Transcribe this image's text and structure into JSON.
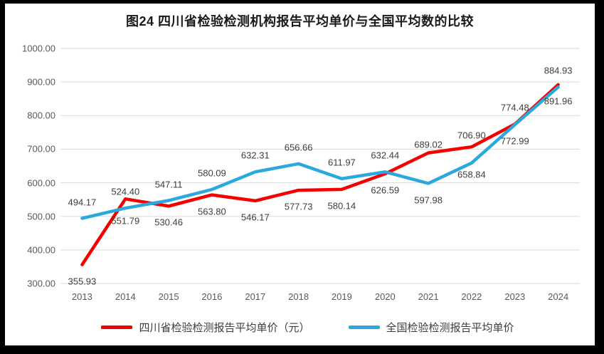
{
  "chart_data": {
    "type": "line",
    "title": "图24  四川省检验检测机构报告平均单价与全国平均数的比较",
    "categories": [
      "2013",
      "2014",
      "2015",
      "2016",
      "2017",
      "2018",
      "2019",
      "2020",
      "2021",
      "2022",
      "2023",
      "2024"
    ],
    "series": [
      {
        "name": "四川省检验检测报告平均单价（元）",
        "color": "#f40000",
        "values": [
          355.93,
          551.79,
          530.46,
          563.8,
          546.17,
          577.73,
          580.14,
          626.59,
          689.02,
          706.9,
          774.48,
          891.96
        ],
        "label_sides": [
          "below",
          "below",
          "below",
          "below",
          "below",
          "below",
          "below",
          "below",
          "above",
          "above",
          "above",
          "below"
        ],
        "label_dy": [
          0,
          8,
          0,
          0,
          0,
          0,
          0,
          0,
          11,
          7,
          0,
          0
        ]
      },
      {
        "name": "全国检验检测报告平均单价",
        "color": "#2ba9df",
        "values": [
          494.17,
          524.4,
          547.11,
          580.09,
          632.31,
          656.66,
          611.97,
          632.44,
          597.98,
          658.84,
          772.99,
          884.93
        ],
        "label_sides": [
          "above",
          "above",
          "above",
          "above",
          "above",
          "above",
          "above",
          "above",
          "below",
          "below",
          "below",
          "above"
        ],
        "label_dy": [
          0,
          0,
          0,
          0,
          0,
          0,
          0,
          0,
          0,
          -7,
          0,
          0
        ]
      }
    ],
    "xlabel": "",
    "ylabel": "",
    "ylim": [
      300,
      1000
    ],
    "y_ticks": [
      "1000.00",
      "900.00",
      "800.00",
      "700.00",
      "600.00",
      "500.00",
      "400.00",
      "300.00"
    ],
    "grid": "horizontal",
    "gridline_color": "#d9d9d9",
    "legend_position": "bottom",
    "value_format": "0.00"
  }
}
